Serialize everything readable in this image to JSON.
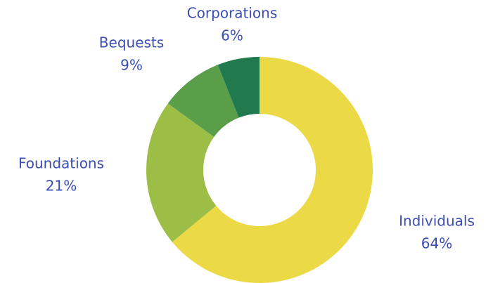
{
  "chart_data": {
    "type": "donut",
    "categories": [
      "Individuals",
      "Foundations",
      "Bequests",
      "Corporations"
    ],
    "values": [
      64,
      21,
      9,
      6
    ],
    "value_labels": [
      "64%",
      "21%",
      "9%",
      "6%"
    ],
    "colors": [
      "#ecd946",
      "#9dbe46",
      "#5a9e4a",
      "#217a4e"
    ]
  }
}
